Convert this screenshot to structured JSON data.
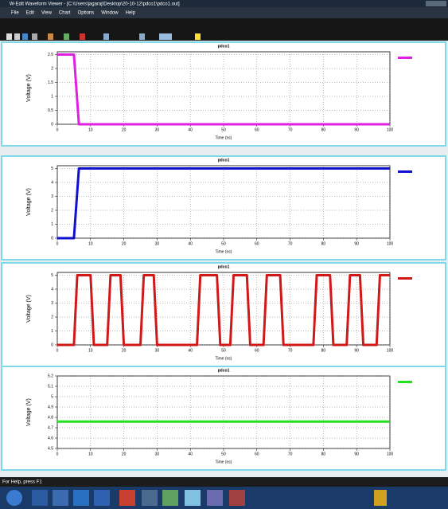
{
  "window": {
    "title": "W-Edit Waveform Viewer - [C:\\Users\\jagaraj\\Desktop\\20-10-12\\pdco1\\pdco1.out]",
    "menu": [
      "File",
      "Edit",
      "View",
      "Chart",
      "Options",
      "Window",
      "Help"
    ],
    "status": "For Help, press F1"
  },
  "chart_data": [
    {
      "type": "line",
      "title": "pdco1",
      "xlabel": "Time (ns)",
      "ylabel": "Voltage (V)",
      "grid": true,
      "xlim": [
        0,
        100
      ],
      "xticks": [
        0,
        10,
        20,
        30,
        40,
        50,
        60,
        70,
        80,
        90,
        100
      ],
      "ylim": [
        0,
        2.6
      ],
      "yticks": [
        0,
        0.5,
        1,
        1.5,
        2,
        2.5
      ],
      "series": [
        {
          "color": "#e020e0",
          "x": [
            0,
            5,
            6.5,
            100
          ],
          "values": [
            2.5,
            2.5,
            0,
            0
          ]
        }
      ]
    },
    {
      "type": "line",
      "title": "pdco1",
      "xlabel": "Time (ns)",
      "ylabel": "Voltage (V)",
      "grid": true,
      "xlim": [
        0,
        100
      ],
      "xticks": [
        0,
        10,
        20,
        30,
        40,
        50,
        60,
        70,
        80,
        90,
        100
      ],
      "ylim": [
        0,
        5.2
      ],
      "yticks": [
        0,
        1,
        2,
        3,
        4,
        5
      ],
      "series": [
        {
          "color": "#1010d0",
          "x": [
            0,
            5,
            6.5,
            100
          ],
          "values": [
            0,
            0,
            5,
            5
          ]
        }
      ]
    },
    {
      "type": "line",
      "title": "pdco1",
      "xlabel": "Time (ns)",
      "ylabel": "Voltage (V)",
      "grid": true,
      "xlim": [
        0,
        100
      ],
      "xticks": [
        0,
        10,
        20,
        30,
        40,
        50,
        60,
        70,
        80,
        90,
        100
      ],
      "ylim": [
        0,
        5.2
      ],
      "yticks": [
        0,
        1,
        2,
        3,
        4,
        5
      ],
      "series": [
        {
          "color": "#d01818",
          "x": [
            0,
            5,
            6,
            10,
            11,
            15,
            16,
            19,
            20,
            25,
            26,
            29,
            30,
            42,
            43,
            48,
            49,
            52,
            53,
            57,
            58,
            62,
            63,
            67,
            68,
            77,
            78,
            82,
            83,
            87,
            88,
            91,
            92,
            96,
            97,
            100
          ],
          "values": [
            0,
            0,
            5,
            5,
            0,
            0,
            5,
            5,
            0,
            0,
            5,
            5,
            0,
            0,
            5,
            5,
            0,
            0,
            5,
            5,
            0,
            0,
            5,
            5,
            0,
            0,
            5,
            5,
            0,
            0,
            5,
            5,
            0,
            0,
            5,
            5
          ]
        }
      ]
    },
    {
      "type": "line",
      "title": "pdco1",
      "xlabel": "Time (ns)",
      "ylabel": "Voltage (V)",
      "grid": true,
      "xlim": [
        0,
        100
      ],
      "xticks": [
        0,
        10,
        20,
        30,
        40,
        50,
        60,
        70,
        80,
        90,
        100
      ],
      "ylim": [
        4.5,
        5.2
      ],
      "yticks": [
        4.5,
        4.6,
        4.7,
        4.8,
        4.9,
        5,
        5.1,
        5.2
      ],
      "series": [
        {
          "color": "#20e020",
          "x": [
            0,
            100
          ],
          "values": [
            4.76,
            4.76
          ]
        }
      ]
    }
  ]
}
